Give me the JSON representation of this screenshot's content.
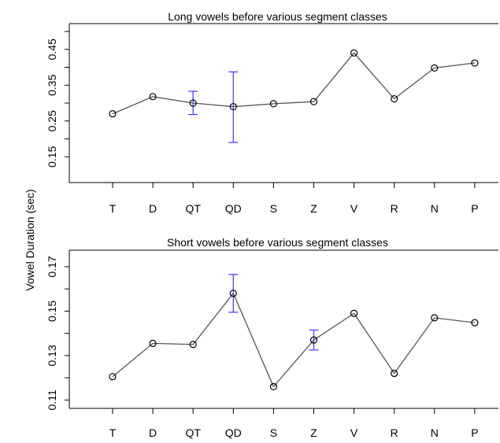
{
  "figure": {
    "shared_ylabel": "Vowel Duration (sec)"
  },
  "chart_data": [
    {
      "type": "line",
      "title": "Long vowels before various segment classes",
      "xlabel": "",
      "ylabel": "Vowel Duration (sec)",
      "categories": [
        "T",
        "D",
        "QT",
        "QD",
        "S",
        "Z",
        "V",
        "R",
        "N",
        "P"
      ],
      "values": [
        0.27,
        0.318,
        0.3,
        0.29,
        0.298,
        0.304,
        0.44,
        0.312,
        0.398,
        0.412
      ],
      "error_bars": [
        {
          "category": "QT",
          "low": 0.268,
          "high": 0.333
        },
        {
          "category": "QD",
          "low": 0.19,
          "high": 0.387
        }
      ],
      "yticks": [
        "0.15",
        "0.25",
        "0.35",
        "0.45"
      ],
      "yticks_values": [
        0.15,
        0.25,
        0.35,
        0.45
      ],
      "ylim": [
        0.1,
        0.5
      ],
      "grid": false,
      "accent_color": "#3a3aff"
    },
    {
      "type": "line",
      "title": "Short vowels before various segment classes",
      "xlabel": "",
      "ylabel": "Vowel Duration (sec)",
      "categories": [
        "T",
        "D",
        "QT",
        "QD",
        "S",
        "Z",
        "V",
        "R",
        "N",
        "P"
      ],
      "values": [
        0.1205,
        0.1355,
        0.135,
        0.158,
        0.116,
        0.137,
        0.149,
        0.122,
        0.147,
        0.1448
      ],
      "error_bars": [
        {
          "category": "QD",
          "low": 0.1495,
          "high": 0.1665
        },
        {
          "category": "Z",
          "low": 0.1325,
          "high": 0.1415
        }
      ],
      "yticks": [
        "0.11",
        "0.13",
        "0.15",
        "0.17"
      ],
      "yticks_values": [
        0.11,
        0.13,
        0.15,
        0.17
      ],
      "ylim": [
        0.108,
        0.176
      ],
      "grid": false,
      "accent_color": "#3a3aff"
    }
  ]
}
